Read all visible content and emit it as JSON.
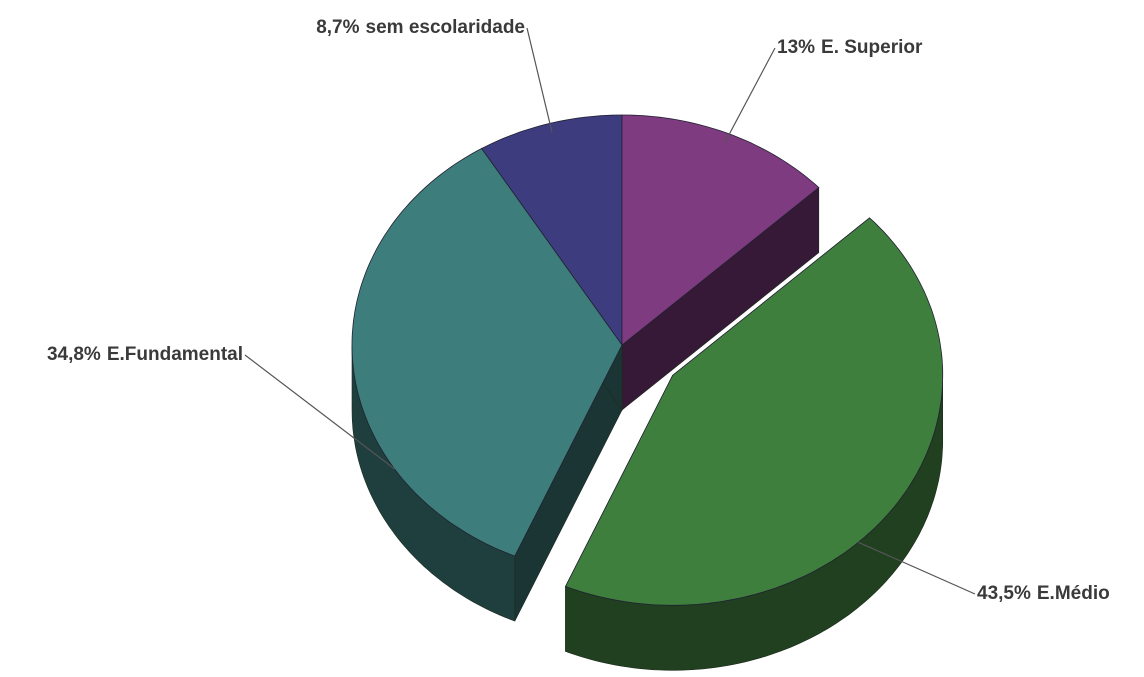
{
  "chart_data": {
    "type": "pie",
    "categories": [
      "E. Superior",
      "E.Médio",
      "E.Fundamental",
      "sem escolaridade"
    ],
    "values": [
      13,
      43.5,
      34.8,
      8.7
    ],
    "value_labels": [
      "13%",
      "43,5%",
      "34,8%",
      "8,7%"
    ],
    "colors": [
      "#7e3b80",
      "#3f7f3e",
      "#3d7e7c",
      "#3c3c7e"
    ],
    "exploded": [
      false,
      true,
      false,
      false
    ]
  }
}
